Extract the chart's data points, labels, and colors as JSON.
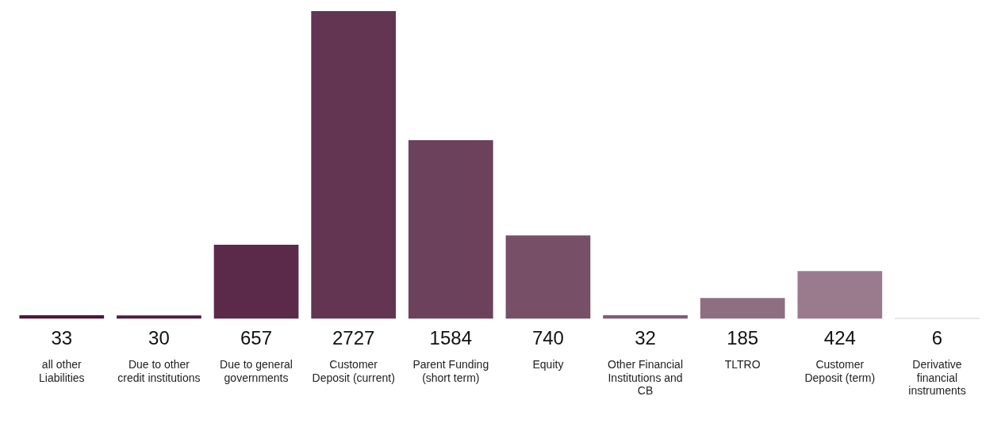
{
  "chart_data": {
    "type": "bar",
    "categories": [
      "all other Liabilities",
      "Due to other credit institutions",
      "Due to general governments",
      "Customer Deposit (current)",
      "Parent Funding (short term)",
      "Equity",
      "Other Financial Institutions and CB",
      "TLTRO",
      "Customer Deposit (term)",
      "Derivative financial instruments"
    ],
    "values": [
      33,
      30,
      657,
      2727,
      1584,
      740,
      32,
      185,
      424,
      6
    ],
    "colors": [
      "#4e1737",
      "#521d3f",
      "#5b2a4b",
      "#633552",
      "#6c415c",
      "#774f66",
      "#815d74",
      "#8d6f81",
      "#9a7b8e",
      "#a7929f"
    ],
    "data_labels": true,
    "grid": false,
    "legend": false,
    "tick_labels": "x"
  }
}
